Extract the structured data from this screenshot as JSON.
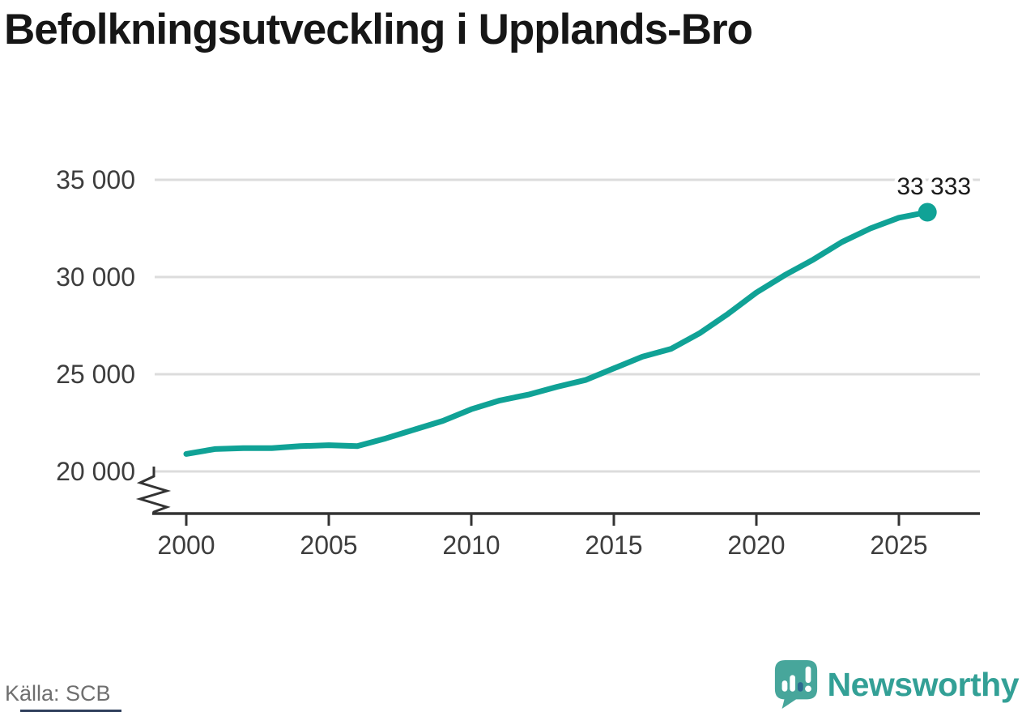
{
  "header": {
    "title": "Befolkningsutveckling i Upplands-Bro"
  },
  "footer": {
    "source_label": "Källa: SCB",
    "brand_name": "Newsworthy"
  },
  "icons": {
    "logo": "newsworthy-speech-bubble-bar-chart-icon"
  },
  "colors": {
    "line": "#10a296",
    "grid": "#dcdcdc",
    "axis": "#333333",
    "tick_text": "#3d3d3d",
    "title_text": "#161616",
    "annotation_text": "#1a1a1a",
    "source_text": "#6f6f6f",
    "brand_teal": "#33a096",
    "logo_bubble": "#47a69b",
    "logo_bar_dark": "#2d6a8f",
    "bottom_strip": "#2f3f5c"
  },
  "chart_data": {
    "type": "line",
    "title": "Befolkningsutveckling i Upplands-Bro",
    "source": "SCB",
    "series_name": "Befolkning",
    "x": [
      2000,
      2001,
      2002,
      2003,
      2004,
      2005,
      2006,
      2007,
      2008,
      2009,
      2010,
      2011,
      2012,
      2013,
      2014,
      2015,
      2016,
      2017,
      2018,
      2019,
      2020,
      2021,
      2022,
      2023,
      2024,
      2025,
      2026
    ],
    "values": [
      20900,
      21150,
      21200,
      21200,
      21300,
      21350,
      21300,
      21700,
      22150,
      22600,
      23200,
      23650,
      23950,
      24350,
      24700,
      25300,
      25900,
      26300,
      27100,
      28100,
      29200,
      30100,
      30900,
      31800,
      32500,
      33050,
      33333
    ],
    "end_annotation": "33 333",
    "latest_value": 33333,
    "x_ticks": [
      2000,
      2005,
      2010,
      2015,
      2020,
      2025
    ],
    "x_tick_labels": [
      "2000",
      "2005",
      "2010",
      "2015",
      "2020",
      "2025"
    ],
    "y_ticks": [
      {
        "value": 20000,
        "label": "20 000"
      },
      {
        "value": 25000,
        "label": "25 000"
      },
      {
        "value": 30000,
        "label": "30 000"
      },
      {
        "value": 35000,
        "label": "35 000"
      }
    ],
    "ylim": [
      20000,
      35000
    ],
    "axis_break": true,
    "grid": "horizontal",
    "legend": "none"
  }
}
